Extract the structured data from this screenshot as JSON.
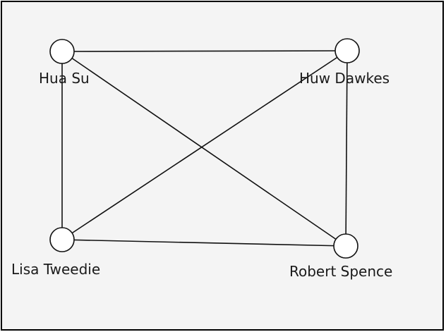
{
  "diagram": {
    "nodes": [
      {
        "id": "hua-su",
        "label": "Hua Su"
      },
      {
        "id": "huw-dawkes",
        "label": "Huw Dawkes"
      },
      {
        "id": "lisa-tweedie",
        "label": "Lisa Tweedie"
      },
      {
        "id": "robert-spence",
        "label": "Robert Spence"
      }
    ],
    "edges": [
      {
        "from": "hua-su",
        "to": "huw-dawkes"
      },
      {
        "from": "hua-su",
        "to": "lisa-tweedie"
      },
      {
        "from": "hua-su",
        "to": "robert-spence"
      },
      {
        "from": "huw-dawkes",
        "to": "lisa-tweedie"
      },
      {
        "from": "huw-dawkes",
        "to": "robert-spence"
      },
      {
        "from": "lisa-tweedie",
        "to": "robert-spence"
      }
    ]
  }
}
